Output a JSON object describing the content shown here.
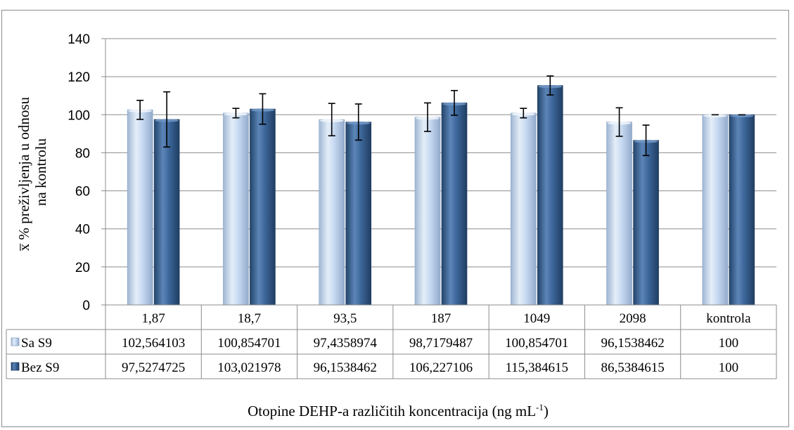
{
  "chart_data": {
    "type": "bar",
    "title": "",
    "ylabel_line1": "x̅ % preživljenja u odnosu",
    "ylabel_line2": "na kontrolu",
    "xlabel_main": "Otopine DEHP-a različitih koncentracija (ng mL",
    "xlabel_sup": "-1",
    "xlabel_end": ")",
    "ylim": [
      0,
      140
    ],
    "yticks": [
      0,
      20,
      40,
      60,
      80,
      100,
      120,
      140
    ],
    "grid": true,
    "legend": "table",
    "categories": [
      "1,87",
      "18,7",
      "93,5",
      "187",
      "1049",
      "2098",
      "kontrola"
    ],
    "series": [
      {
        "name": "Sa S9",
        "color": "#c6d9f1",
        "values": [
          102.564103,
          100.854701,
          97.4358974,
          98.7179487,
          100.854701,
          96.1538462,
          100
        ],
        "labels": [
          "102,564103",
          "100,854701",
          "97,4358974",
          "98,7179487",
          "100,854701",
          "96,1538462",
          "100"
        ],
        "error": [
          5,
          2.5,
          8.5,
          7.5,
          2.5,
          7.5,
          0
        ]
      },
      {
        "name": "Bez S9",
        "color": "#366092",
        "values": [
          97.5274725,
          103.021978,
          96.1538462,
          106.227106,
          115.384615,
          86.5384615,
          100
        ],
        "labels": [
          "97,5274725",
          "103,021978",
          "96,1538462",
          "106,227106",
          "115,384615",
          "86,5384615",
          "100"
        ],
        "error": [
          14.5,
          8,
          9.5,
          6.5,
          5,
          8,
          0
        ]
      }
    ]
  }
}
